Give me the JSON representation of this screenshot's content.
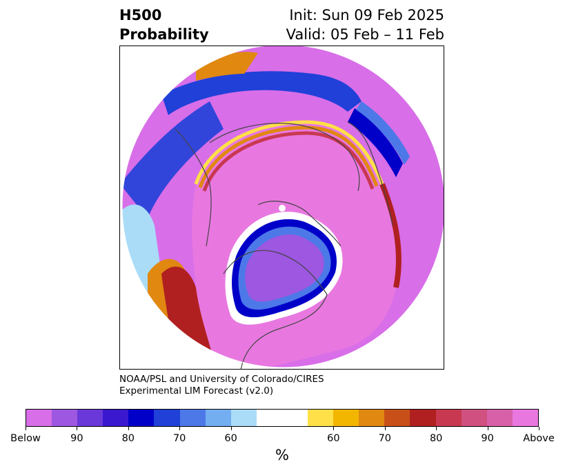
{
  "title": {
    "left_line1": "H500",
    "left_line2": "Probability",
    "right_line1": "Init: Sun 09 Feb 2025",
    "right_line2": "Valid: 05 Feb – 11 Feb"
  },
  "credit": {
    "line1": "NOAA/PSL and University of Colorado/CIRES",
    "line2": "Experimental LIM Forecast (v2.0)"
  },
  "colorbar": {
    "colors": [
      "#d86ee8",
      "#9d57e0",
      "#6a38d8",
      "#3a18d0",
      "#0000c8",
      "#2040d8",
      "#4d78e8",
      "#72aef0",
      "#aadcf8",
      "#ffffff",
      "#ffe048",
      "#f3b600",
      "#e08810",
      "#c85018",
      "#b02020",
      "#c83850",
      "#d05080",
      "#d860a8",
      "#e878e0"
    ],
    "tick_labels": [
      "Below",
      "90",
      "80",
      "70",
      "60",
      "60",
      "70",
      "80",
      "90",
      "Above"
    ],
    "units": "%"
  },
  "map": {
    "projection": "polar-stereographic",
    "hemisphere": "northern",
    "colors": {
      "above_strong": "#e878e0",
      "above_mid": "#d860a8",
      "above_red": "#b02020",
      "above_orange": "#e08810",
      "above_yellow": "#ffe048",
      "below_purple": "#d86ee8",
      "below_violet": "#9d57e0",
      "below_blue": "#2040d8",
      "below_navy": "#0000c8",
      "below_light": "#aadcf8",
      "neutral": "#ffffff",
      "coastline": "#444444"
    }
  }
}
